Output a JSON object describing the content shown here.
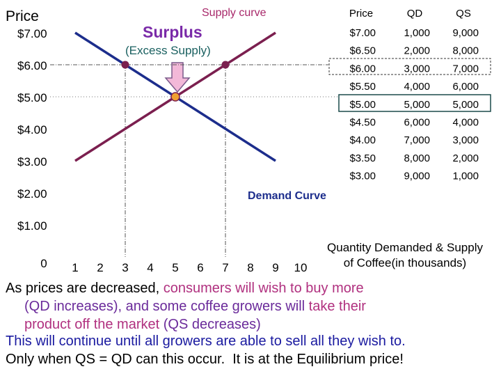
{
  "chart_data": {
    "type": "line",
    "y_label": "Price",
    "x_label": [
      "Quantity Demanded & Supply",
      "of Coffee(in thousands)"
    ],
    "x": [
      1,
      2,
      3,
      4,
      5,
      6,
      7,
      8,
      9
    ],
    "series": [
      {
        "name": "Supply curve",
        "color": "#7b1f4f",
        "values": [
          3,
          3.5,
          4,
          4.5,
          5,
          5.5,
          6,
          6.5,
          7
        ]
      },
      {
        "name": "Demand Curve",
        "color": "#1c2d8c",
        "values": [
          7,
          6.5,
          6,
          5.5,
          5,
          4.5,
          4,
          3.5,
          3
        ]
      }
    ],
    "xlim": [
      0,
      10
    ],
    "xticks": [
      0,
      1,
      2,
      3,
      4,
      5,
      6,
      7,
      8,
      9,
      10
    ],
    "ylim": [
      0,
      8
    ],
    "yticks": [
      {
        "value": 1,
        "label": "$1.00"
      },
      {
        "value": 2,
        "label": "$2.00"
      },
      {
        "value": 3,
        "label": "$3.00"
      },
      {
        "value": 4,
        "label": "$4.00"
      },
      {
        "value": 5,
        "label": "$5.00"
      },
      {
        "value": 6,
        "label": "$6.00"
      },
      {
        "value": 7,
        "label": "$7.00"
      }
    ],
    "highlight_points": [
      {
        "x": 3,
        "y": 6,
        "color": "#7b1f4f"
      },
      {
        "x": 7,
        "y": 6,
        "color": "#7b1f4f"
      }
    ],
    "equilibrium": {
      "x": 5,
      "y": 5,
      "color": "#f0a030"
    },
    "surplus_label": "Surplus",
    "surplus_note": "(Excess Supply)"
  },
  "table": {
    "header": [
      "Price",
      "QD",
      "QS"
    ],
    "rows": [
      [
        "$7.00",
        "1,000",
        "9,000"
      ],
      [
        "$6.50",
        "2,000",
        "8,000"
      ],
      [
        "$6.00",
        "3,000",
        "7,000"
      ],
      [
        "$5.50",
        "4,000",
        "6,000"
      ],
      [
        "$5.00",
        "5,000",
        "5,000"
      ],
      [
        "$4.50",
        "6,000",
        "4,000"
      ],
      [
        "$4.00",
        "7,000",
        "3,000"
      ],
      [
        "$3.50",
        "8,000",
        "2,000"
      ],
      [
        "$3.00",
        "9,000",
        "1,000"
      ]
    ]
  },
  "caption": {
    "lines": [
      [
        {
          "text": "As prices are decreased, ",
          "color": "#000000"
        },
        {
          "text": "consumers will wish to buy more",
          "color": "#b0307f"
        }
      ],
      [
        {
          "text": "(QD increases), and some coffee growers will ",
          "color": "#6a2a9a"
        },
        {
          "text": "take their",
          "color": "#b0307f"
        }
      ],
      [
        {
          "text": "product off the market ",
          "color": "#b0307f"
        },
        {
          "text": "(QS decreases)",
          "color": "#6a2a9a"
        }
      ],
      [
        {
          "text": "This will continue until all growers are able to sell all they wish to.",
          "color": "#1a1aa0"
        }
      ],
      [
        {
          "text": "Only when QS = QD can this occur.  It is at the Equilibrium price!",
          "color": "#000000"
        }
      ]
    ]
  }
}
